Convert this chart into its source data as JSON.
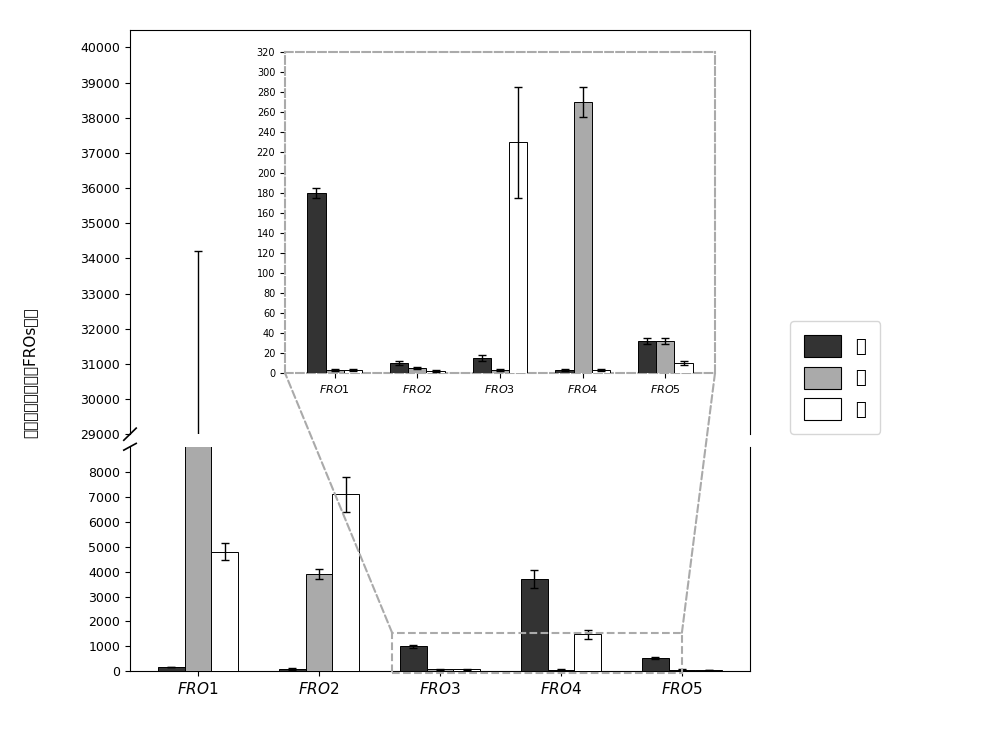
{
  "categories": [
    "FRO1",
    "FRO2",
    "FRO3",
    "FRO4",
    "FRO5"
  ],
  "root": [
    180,
    100,
    1000,
    3700,
    530
  ],
  "stem": [
    28700,
    3900,
    80,
    70,
    70
  ],
  "leaf": [
    4800,
    7100,
    90,
    1480,
    60
  ],
  "root_err": [
    8,
    30,
    60,
    350,
    30
  ],
  "stem_err": [
    5500,
    200,
    15,
    20,
    10
  ],
  "leaf_err": [
    350,
    700,
    15,
    180,
    10
  ],
  "inset_root": [
    180,
    10,
    15,
    3,
    32
  ],
  "inset_stem": [
    3,
    5,
    3,
    270,
    32
  ],
  "inset_leaf": [
    3,
    2,
    230,
    3,
    10
  ],
  "inset_root_err": [
    5,
    2,
    3,
    1,
    3
  ],
  "inset_stem_err": [
    1,
    1,
    1,
    15,
    3
  ],
  "inset_leaf_err": [
    1,
    1,
    55,
    1,
    2
  ],
  "color_root": "#333333",
  "color_stem": "#aaaaaa",
  "color_leaf": "#ffffff",
  "ylabel": "每百万子家基因中FROs数目",
  "legend_labels": [
    "根",
    "茎",
    "叶"
  ],
  "bar_width": 0.22,
  "yticks_lower": [
    0,
    1000,
    2000,
    3000,
    4000,
    5000,
    6000,
    7000,
    8000
  ],
  "yticks_upper": [
    29000,
    30000,
    31000,
    32000,
    33000,
    34000,
    35000,
    36000,
    37000,
    38000,
    39000,
    40000
  ],
  "inset_yticks": [
    0,
    20,
    40,
    60,
    80,
    100,
    120,
    140,
    160,
    180,
    200,
    220,
    240,
    260,
    280,
    300,
    320
  ]
}
